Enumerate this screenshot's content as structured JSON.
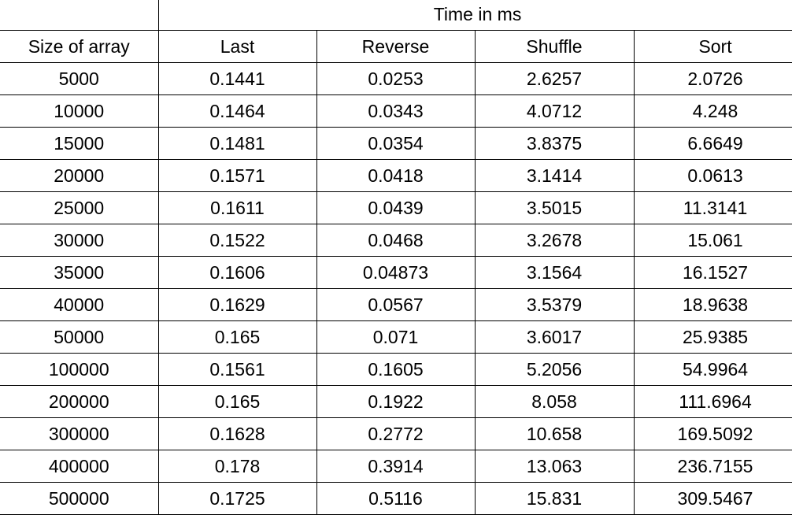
{
  "table": {
    "group_header": "Time in ms",
    "columns": [
      "Size of array",
      "Last",
      "Reverse",
      "Shuffle",
      "Sort"
    ],
    "rows": [
      [
        "5000",
        "0.1441",
        "0.0253",
        "2.6257",
        "2.0726"
      ],
      [
        "10000",
        "0.1464",
        "0.0343",
        "4.0712",
        "4.248"
      ],
      [
        "15000",
        "0.1481",
        "0.0354",
        "3.8375",
        "6.6649"
      ],
      [
        "20000",
        "0.1571",
        "0.0418",
        "3.1414",
        "0.0613"
      ],
      [
        "25000",
        "0.1611",
        "0.0439",
        "3.5015",
        "11.3141"
      ],
      [
        "30000",
        "0.1522",
        "0.0468",
        "3.2678",
        "15.061"
      ],
      [
        "35000",
        "0.1606",
        "0.04873",
        "3.1564",
        "16.1527"
      ],
      [
        "40000",
        "0.1629",
        "0.0567",
        "3.5379",
        "18.9638"
      ],
      [
        "50000",
        "0.165",
        "0.071",
        "3.6017",
        "25.9385"
      ],
      [
        "100000",
        "0.1561",
        "0.1605",
        "5.2056",
        "54.9964"
      ],
      [
        "200000",
        "0.165",
        "0.1922",
        "8.058",
        "111.6964"
      ],
      [
        "300000",
        "0.1628",
        "0.2772",
        "10.658",
        "169.5092"
      ],
      [
        "400000",
        "0.178",
        "0.3914",
        "13.063",
        "236.7155"
      ],
      [
        "500000",
        "0.1725",
        "0.5116",
        "15.831",
        "309.5467"
      ]
    ]
  }
}
